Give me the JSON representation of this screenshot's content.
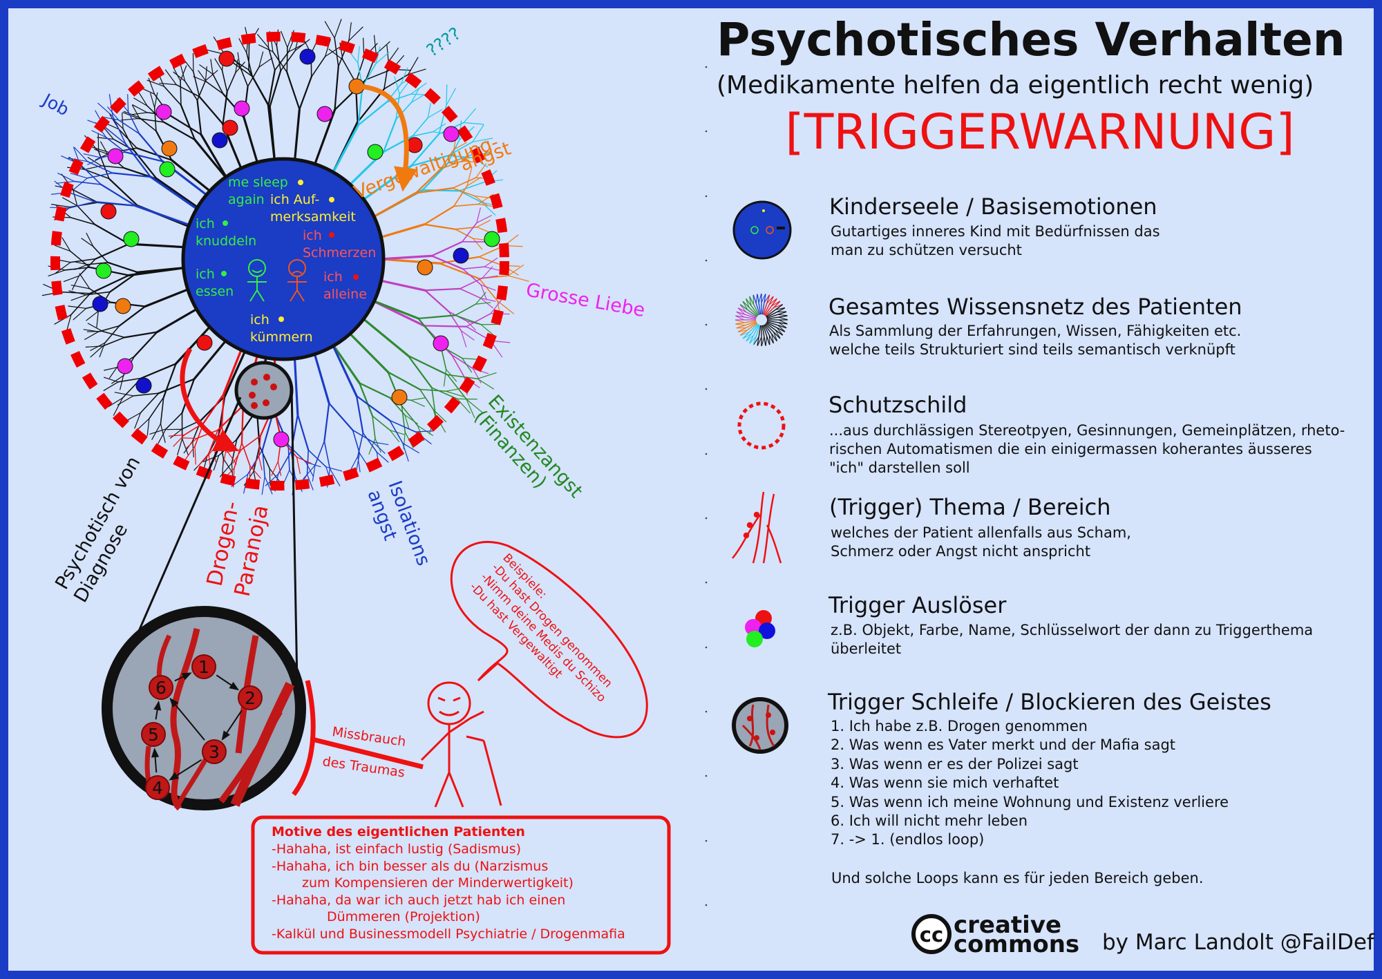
{
  "header": {
    "title": "Psychotisches Verhalten",
    "subtitle": "(Medikamente helfen da eigentlich recht wenig)",
    "warning": "[TRIGGERWARNUNG]"
  },
  "diagram": {
    "core_labels": {
      "me_sleep_1": "me sleep",
      "me_sleep_2": "again",
      "aufmerk_1": "ich Auf-",
      "aufmerk_2": "merksamkeit",
      "knuddeln_1": "ich",
      "knuddeln_2": "knuddeln",
      "schmerzen_1": "ich",
      "schmerzen_2": "Schmerzen",
      "essen_1": "ich",
      "essen_2": "essen",
      "alleine_1": "ich",
      "alleine_2": "alleine",
      "kuemmern_1": "ich",
      "kuemmern_2": "kümmern"
    },
    "topics": {
      "job": "Job",
      "question": "????",
      "vergewaltigung_1": "Vergewaltigung-",
      "vergewaltigung_2": "angst",
      "grosse_liebe": "Grosse Liebe",
      "existenz_1": "Existenzangst",
      "existenz_2": "(Finanzen)",
      "isolation_1": "Isolations",
      "isolation_2": "angst",
      "drogen_1": "Drogen-",
      "drogen_2": "Paranoja",
      "psychotisch_1": "Psychotisch von",
      "psychotisch_2": "Diagnose"
    },
    "loop_nodes": [
      "1",
      "2",
      "3",
      "4",
      "5",
      "6"
    ],
    "missbrauch_1": "Missbrauch",
    "missbrauch_2": "des Traumas",
    "bubble": {
      "line1": "Beispiele:",
      "line2": "-Du hast Drogen genommen",
      "line3": "-Nimm deine Medis du Schizo",
      "line4": "-Du hast Vergewaltigt"
    },
    "motive_box": {
      "title": "Motive des eigentlichen Patienten",
      "lines": [
        "-Hahaha, ist einfach lustig (Sadismus)",
        "-Hahaha, ich bin besser als du (Narzismus",
        "zum Kompensieren der Minderwertigkeit)",
        "-Hahaha, da war ich auch jetzt hab ich einen",
        "Dümmeren (Projektion)",
        "-Kalkül und Businessmodell Psychiatrie / Drogenmafia"
      ]
    }
  },
  "legend": [
    {
      "title": "Kinderseele / Basisemotionen",
      "lines": [
        "Gutartiges inneres Kind mit Bedürfnissen das",
        "man zu schützen versucht"
      ]
    },
    {
      "title": "Gesamtes Wissensnetz des Patienten",
      "lines": [
        "Als Sammlung der Erfahrungen, Wissen, Fähigkeiten etc.",
        "welche teils Strukturiert sind teils semantisch verknüpft"
      ]
    },
    {
      "title": "Schutzschild",
      "lines": [
        "...aus durchlässigen Stereotpyen, Gesinnungen, Gemeinplätzen, rheto-",
        "rischen Automatismen die ein einigermassen koherantes äusseres",
        "\"ich\" darstellen soll"
      ]
    },
    {
      "title": "(Trigger) Thema / Bereich",
      "lines": [
        "welches der Patient allenfalls aus Scham,",
        "Schmerz oder Angst nicht anspricht"
      ]
    },
    {
      "title": "Trigger Auslöser",
      "lines": [
        "z.B. Objekt, Farbe, Name, Schlüsselwort der dann zu Triggerthema",
        "überleitet"
      ]
    },
    {
      "title": "Trigger Schleife / Blockieren des Geistes",
      "lines": [
        "1. Ich habe z.B. Drogen genommen",
        "2. Was wenn es Vater merkt und der Mafia sagt",
        "3. Was wenn er es der Polizei sagt",
        "4. Was wenn sie mich verhaftet",
        "5. Was wenn ich meine Wohnung und Existenz verliere",
        "6. Ich will nicht mehr leben",
        "7. -> 1. (endlos loop)"
      ]
    }
  ],
  "legend_footer": "Und solche Loops kann es für jeden Bereich geben.",
  "footer": {
    "cc_1": "creative",
    "cc_2": "commons",
    "cc_mark": "cc",
    "author": "by Marc Landolt @FailDef"
  },
  "colors": {
    "frame": "#1b3cc4",
    "background": "#d5e3fb",
    "core": "#1b3cc4",
    "shield": "#ee0000",
    "loop_bg": "#9aa5b5"
  }
}
